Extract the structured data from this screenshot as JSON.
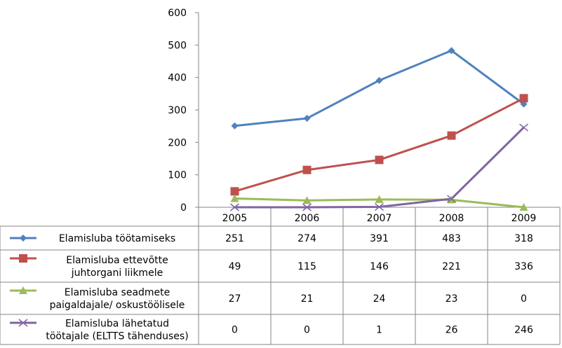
{
  "chart_data": {
    "type": "line",
    "categories": [
      "2005",
      "2006",
      "2007",
      "2008",
      "2009"
    ],
    "ylim": [
      0,
      600
    ],
    "yticks": [
      0,
      100,
      200,
      300,
      400,
      500,
      600
    ],
    "grid": false,
    "legend": "table-left",
    "series": [
      {
        "name": "Elamisluba töötamiseks",
        "name_lines": [
          "Elamisluba töötamiseks"
        ],
        "values": [
          251,
          274,
          391,
          483,
          318
        ],
        "color": "#4F81BD",
        "marker": "diamond"
      },
      {
        "name": "Elamisluba ettevõtte juhtorgani liikmele",
        "name_lines": [
          "Elamisluba ettevõtte",
          "juhtorgani liikmele"
        ],
        "values": [
          49,
          115,
          146,
          221,
          336
        ],
        "color": "#C0504D",
        "marker": "square"
      },
      {
        "name": "Elamisluba seadmete paigaldajale/ oskustöölisele",
        "name_lines": [
          "Elamisluba seadmete",
          "paigaldajale/ oskustöölisele"
        ],
        "values": [
          27,
          21,
          24,
          23,
          0
        ],
        "color": "#9BBB59",
        "marker": "triangle"
      },
      {
        "name": "Elamisluba lähetatud töötajale (ELTTS tähenduses)",
        "name_lines": [
          "Elamisluba lähetatud",
          "töötajale (ELTTS tähenduses)"
        ],
        "values": [
          0,
          0,
          1,
          26,
          246
        ],
        "color": "#8064A2",
        "marker": "x"
      }
    ]
  }
}
